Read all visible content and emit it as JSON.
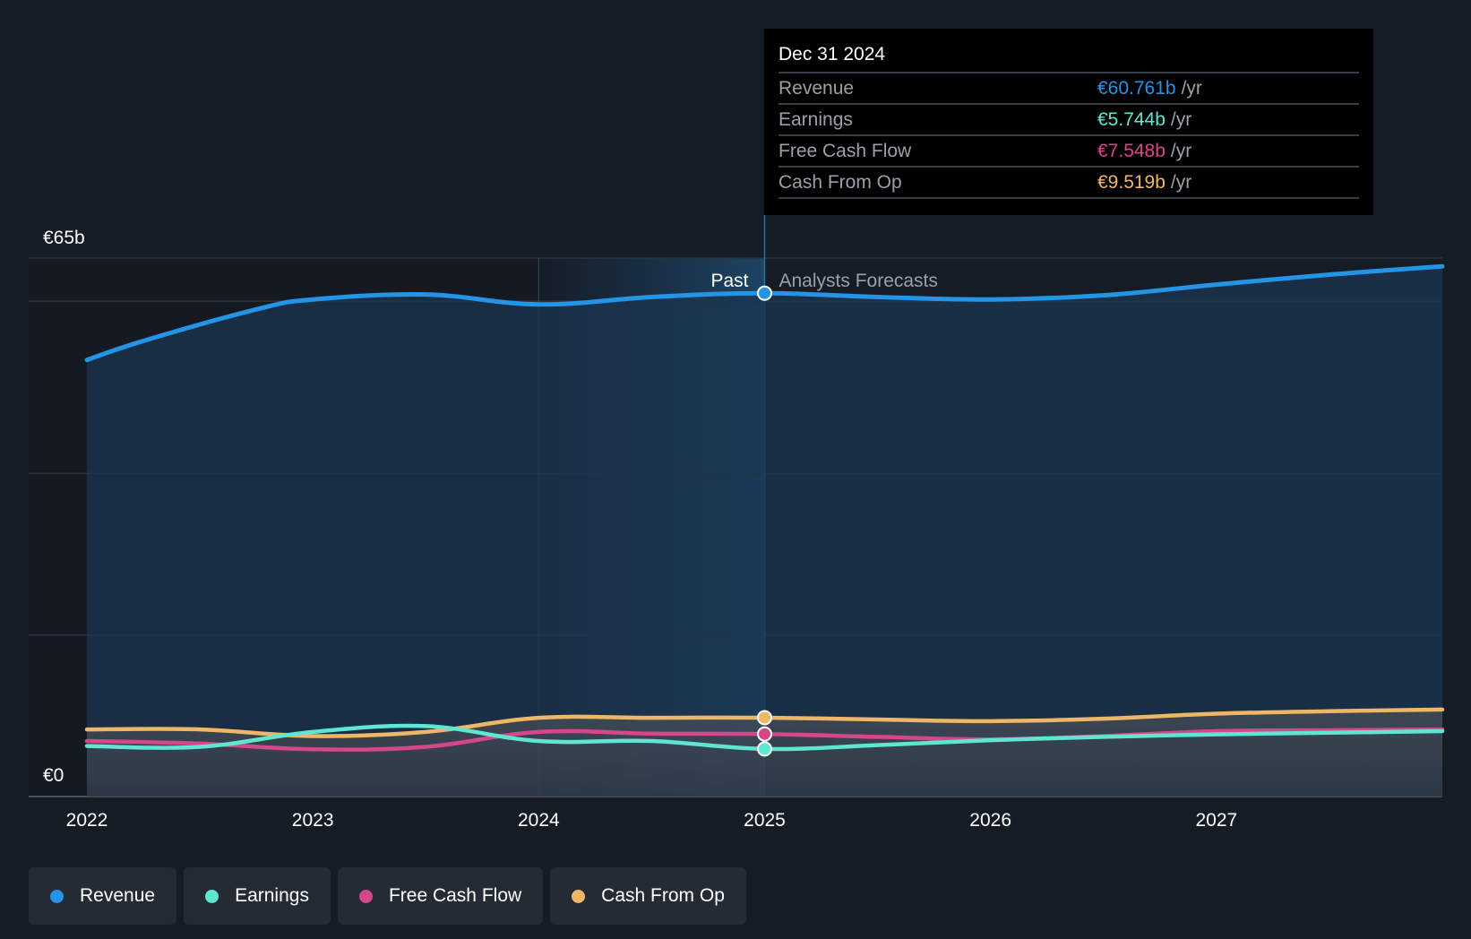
{
  "chart_data": {
    "type": "area",
    "y_axis": {
      "top_label": "€65b",
      "bottom_label": "€0",
      "ylim": [
        0,
        65
      ],
      "unit": "€b"
    },
    "x_ticks": [
      "2022",
      "2023",
      "2024",
      "2025",
      "2026",
      "2027"
    ],
    "xlim": [
      2022.0,
      2028.0
    ],
    "divider": {
      "x": 2025.0,
      "past_label": "Past",
      "forecast_label": "Analysts Forecasts"
    },
    "series": [
      {
        "name": "Revenue",
        "color": "#2394e6",
        "x": [
          2022.0,
          2022.25,
          2022.75,
          2023.0,
          2023.5,
          2024.0,
          2024.5,
          2025.0,
          2025.5,
          2026.0,
          2026.5,
          2027.0,
          2027.5,
          2028.0
        ],
        "y": [
          52.7,
          55.0,
          58.8,
          60.0,
          60.6,
          59.4,
          60.3,
          60.761,
          60.3,
          60.0,
          60.5,
          61.8,
          63.0,
          64.0
        ]
      },
      {
        "name": "Earnings",
        "color": "#5ee6d2",
        "x": [
          2022.0,
          2022.5,
          2023.0,
          2023.5,
          2024.0,
          2024.5,
          2025.0,
          2025.5,
          2026.0,
          2026.5,
          2027.0,
          2027.5,
          2028.0
        ],
        "y": [
          6.1,
          6.0,
          7.8,
          8.5,
          6.7,
          6.7,
          5.744,
          6.2,
          6.8,
          7.2,
          7.5,
          7.7,
          7.9
        ]
      },
      {
        "name": "Free Cash Flow",
        "color": "#d6478a",
        "x": [
          2022.0,
          2022.5,
          2023.0,
          2023.5,
          2024.0,
          2024.5,
          2025.0,
          2025.5,
          2026.0,
          2026.5,
          2027.0,
          2027.5,
          2028.0
        ],
        "y": [
          6.7,
          6.4,
          5.7,
          6.0,
          7.8,
          7.6,
          7.548,
          7.2,
          6.9,
          7.3,
          7.9,
          8.0,
          8.1
        ]
      },
      {
        "name": "Cash From Op",
        "color": "#eeb766",
        "x": [
          2022.0,
          2022.5,
          2023.0,
          2023.5,
          2024.0,
          2024.5,
          2025.0,
          2025.5,
          2026.0,
          2026.5,
          2027.0,
          2027.5,
          2028.0
        ],
        "y": [
          8.1,
          8.1,
          7.3,
          7.8,
          9.5,
          9.5,
          9.519,
          9.3,
          9.1,
          9.4,
          10.0,
          10.3,
          10.5
        ]
      }
    ]
  },
  "tooltip": {
    "date": "Dec 31 2024",
    "rows": [
      {
        "label": "Revenue",
        "value": "€60.761b",
        "unit": "/yr",
        "color": "#2394e6"
      },
      {
        "label": "Earnings",
        "value": "€5.744b",
        "unit": "/yr",
        "color": "#5ee6d2"
      },
      {
        "label": "Free Cash Flow",
        "value": "€7.548b",
        "unit": "/yr",
        "color": "#d6478a"
      },
      {
        "label": "Cash From Op",
        "value": "€9.519b",
        "unit": "/yr",
        "color": "#eeb766"
      }
    ]
  },
  "legend": [
    {
      "label": "Revenue",
      "color": "#2394e6"
    },
    {
      "label": "Earnings",
      "color": "#5ee6d2"
    },
    {
      "label": "Free Cash Flow",
      "color": "#d6478a"
    },
    {
      "label": "Cash From Op",
      "color": "#eeb766"
    }
  ]
}
